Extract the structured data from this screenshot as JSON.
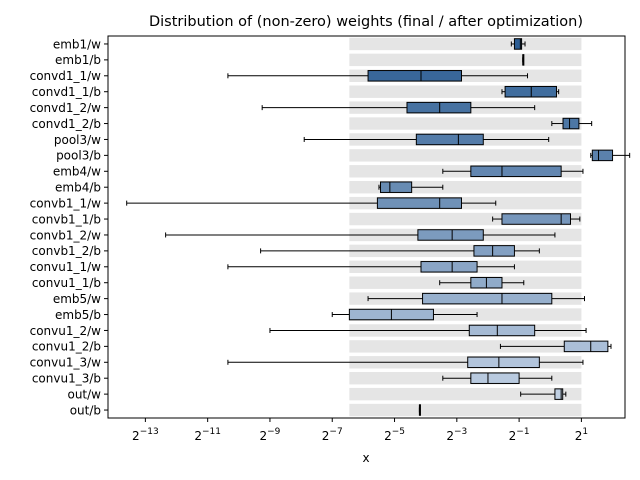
{
  "chart_data": {
    "type": "boxplot-horizontal",
    "title": "Distribution of (non-zero) weights (final / after optimization)",
    "xlabel": "x",
    "xscale": "log2",
    "xlim_log2": [
      -14.2,
      2.4
    ],
    "xticks_log2": [
      -13,
      -11,
      -9,
      -7,
      -5,
      -3,
      -1,
      1
    ],
    "xtick_labels": [
      "2^-13",
      "2^-11",
      "2^-9",
      "2^-7",
      "2^-5",
      "2^-3",
      "2^-1",
      "2^1"
    ],
    "background_band_log2": [
      -6.45,
      1.0
    ],
    "colors": {
      "band": "#e5e5e5",
      "box_dark": "#2c5d93",
      "box_light": "#c6d4e6",
      "whisker": "#000000"
    },
    "series": [
      {
        "name": "emb1/w",
        "whislo": -1.25,
        "q1": -1.15,
        "med": -0.96,
        "q3": -0.92,
        "whishi": -0.81
      },
      {
        "name": "emb1/b",
        "whislo": -0.88,
        "q1": -0.88,
        "med": -0.88,
        "q3": -0.88,
        "whishi": -0.88
      },
      {
        "name": "convd1_1/w",
        "whislo": -10.35,
        "q1": -5.85,
        "med": -4.15,
        "q3": -2.85,
        "whishi": -0.73
      },
      {
        "name": "convd1_1/b",
        "whislo": -1.55,
        "q1": -1.45,
        "med": -0.61,
        "q3": 0.2,
        "whishi": 0.27
      },
      {
        "name": "convd1_2/w",
        "whislo": -9.25,
        "q1": -4.6,
        "med": -3.55,
        "q3": -2.55,
        "whishi": -0.5
      },
      {
        "name": "convd1_2/b",
        "whislo": 0.05,
        "q1": 0.41,
        "med": 0.62,
        "q3": 0.92,
        "whishi": 1.33
      },
      {
        "name": "pool3/w",
        "whislo": -7.9,
        "q1": -4.3,
        "med": -2.95,
        "q3": -2.15,
        "whishi": -0.05
      },
      {
        "name": "pool3/b",
        "whislo": 1.3,
        "q1": 1.35,
        "med": 1.55,
        "q3": 2.0,
        "whishi": 2.55
      },
      {
        "name": "emb4/w",
        "whislo": -3.45,
        "q1": -2.55,
        "med": -1.55,
        "q3": 0.35,
        "whishi": 1.05
      },
      {
        "name": "emb4/b",
        "whislo": -5.5,
        "q1": -5.45,
        "med": -5.15,
        "q3": -4.45,
        "whishi": -3.45
      },
      {
        "name": "convb1_1/w",
        "whislo": -13.6,
        "q1": -5.55,
        "med": -3.55,
        "q3": -2.85,
        "whishi": -1.75
      },
      {
        "name": "convb1_1/b",
        "whislo": -1.85,
        "q1": -1.55,
        "med": 0.35,
        "q3": 0.65,
        "whishi": 0.95
      },
      {
        "name": "convb1_2/w",
        "whislo": -12.35,
        "q1": -4.25,
        "med": -3.15,
        "q3": -2.15,
        "whishi": 0.15
      },
      {
        "name": "convb1_2/b",
        "whislo": -9.3,
        "q1": -2.45,
        "med": -1.85,
        "q3": -1.15,
        "whishi": -0.35
      },
      {
        "name": "convu1_1/w",
        "whislo": -10.35,
        "q1": -4.15,
        "med": -3.15,
        "q3": -2.35,
        "whishi": -1.15
      },
      {
        "name": "convu1_1/b",
        "whislo": -3.55,
        "q1": -2.55,
        "med": -2.05,
        "q3": -1.55,
        "whishi": -0.85
      },
      {
        "name": "emb5/w",
        "whislo": -5.85,
        "q1": -4.1,
        "med": -1.55,
        "q3": 0.05,
        "whishi": 1.1
      },
      {
        "name": "emb5/b",
        "whislo": -7.0,
        "q1": -6.45,
        "med": -5.1,
        "q3": -3.75,
        "whishi": -2.35
      },
      {
        "name": "convu1_2/w",
        "whislo": -9.0,
        "q1": -2.6,
        "med": -1.7,
        "q3": -0.5,
        "whishi": 1.15
      },
      {
        "name": "convu1_2/b",
        "whislo": -1.6,
        "q1": 0.45,
        "med": 1.3,
        "q3": 1.85,
        "whishi": 1.95
      },
      {
        "name": "convu1_3/w",
        "whislo": -10.35,
        "q1": -2.65,
        "med": -1.65,
        "q3": -0.35,
        "whishi": 1.05
      },
      {
        "name": "convu1_3/b",
        "whislo": -3.45,
        "q1": -2.55,
        "med": -2.0,
        "q3": -1.0,
        "whishi": 0.05
      },
      {
        "name": "out/w",
        "whislo": -0.95,
        "q1": 0.15,
        "med": 0.35,
        "q3": 0.4,
        "whishi": 0.5
      },
      {
        "name": "out/b",
        "whislo": -4.2,
        "q1": -4.2,
        "med": -4.2,
        "q3": -4.2,
        "whishi": -4.2
      }
    ]
  }
}
